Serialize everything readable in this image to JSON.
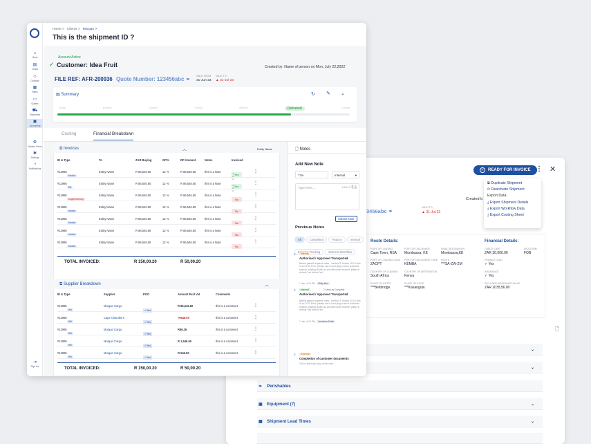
{
  "back": {
    "ready_btn": "READY FOR INVOICE",
    "menu": [
      "Duplicate Shipment",
      "Deactivate Shipment",
      "Export Data:",
      "Export Shipment Details",
      "Export Workflow Data",
      "Export Costing Sheet"
    ],
    "created_frag": "Created b",
    "quote_frag": "3456abc",
    "valid_to_lbl": "VALID TO",
    "valid_to": "31-Jul-23",
    "route": {
      "title": "Route Details:",
      "fields": [
        {
          "label": "PORT OF LOADING",
          "value": "Cape Town, RSA"
        },
        {
          "label": "PORT OF DISCHARGE",
          "value": "Mombassa, KE"
        },
        {
          "label": "FINAL DESTINATION",
          "value": "Mombassa,KE"
        },
        {
          "label": "PORT OF LOADING CODE",
          "value": "ZACPT"
        },
        {
          "label": "PORT OF DISCHARGE CODE",
          "value": "KEMBA"
        },
        {
          "label": "ROUTE",
          "value": "***SA-ZW-ZM"
        },
        {
          "label": "COUNTRY OF LOADING",
          "value": "South Africa"
        },
        {
          "label": "COUNTRY OF DESTINATION",
          "value": "Kenya"
        },
        {
          "label": "PLACE OF ENTRY",
          "value": "***Beitbridge"
        },
        {
          "label": "PLACE OF EXITS",
          "value": "***Kasangula"
        }
      ]
    },
    "financial": {
      "title": "Financial Details:",
      "fields": [
        {
          "label": "CREDIT LIMIT",
          "value": "ZAR 30,000.00"
        },
        {
          "label": "INCOTERM",
          "value": "FOB"
        },
        {
          "label": "FINANCE LEAD",
          "value": "✓ Yes"
        },
        {
          "label": "INSURANCE",
          "value": "✓ Yes"
        },
        {
          "label": "INCLUDED INSURANCE VALUE",
          "value": "ZAR 2035,56.00"
        }
      ]
    },
    "accordions": [
      "",
      "",
      "Perishables",
      "Equipment (7)",
      "Shipment Lead Times",
      ""
    ]
  },
  "nav": [
    {
      "icon": "⌂",
      "label": "Home"
    },
    {
      "icon": "▤",
      "label": "Leads"
    },
    {
      "icon": "☺",
      "label": "Contacts"
    },
    {
      "icon": "▦",
      "label": "Rates"
    },
    {
      "icon": "▭",
      "label": "Quotes"
    },
    {
      "icon": "⛟",
      "label": "Shipments"
    },
    {
      "icon": "▣",
      "label": "Accounting"
    },
    {
      "icon": "⚙",
      "label": "System Users"
    },
    {
      "icon": "✱",
      "label": "Settings"
    },
    {
      "icon": "◔",
      "label": "Notifications"
    },
    {
      "icon": "⇥",
      "label": "Sign out"
    }
  ],
  "breadcrumb": [
    "Home >",
    "Clients >",
    "Morgan >"
  ],
  "title": "This is the shipment ID ?",
  "account_status": "Account Active",
  "customer": "Customer: Idea Fruit",
  "created_by": "Created by: Name of person on Mon, July 22,2022",
  "file_ref": "FILE REF:  AFR-200936",
  "quote_no": "Quote Number: 123456abc",
  "valid_from_lbl": "VALID FROM",
  "valid_from": "31-Jun-23",
  "valid_to_lbl": "VALID TO",
  "valid_to": "31-Jul-23",
  "summary": {
    "title": "Summary",
    "stages": [
      "Quote",
      "Booked",
      "Loaded",
      "Transit",
      "Arrived",
      "Delivered",
      "Closed"
    ],
    "current": "Delivered",
    "progress": 0.8
  },
  "tabs": [
    "Costing",
    "Financial Breakdown"
  ],
  "invoices": {
    "title": "Invoices",
    "filter": "Entity Name",
    "headers": [
      "ID & Type",
      "To",
      "ZAR Buying",
      "GP%",
      "DP Amount",
      "Notes",
      "Invoiced"
    ],
    "rows": [
      {
        "id": "#12995",
        "tag": "Invoice",
        "to": "Entity Name",
        "zar": "R 86,546.60",
        "gp": "12 %",
        "dp": "R 86,546.60",
        "note": "this is a Note",
        "inv": "Yes",
        "date": "12-06-23"
      },
      {
        "id": "#12995",
        "tag": "DN",
        "to": "Entity Name",
        "zar": "R 86,546.60",
        "gp": "12 %",
        "dp": "R 86,546.60",
        "note": "this is a Note",
        "inv": "Yes",
        "date": "12-06-23"
      },
      {
        "id": "#12995",
        "tag": "Supplementary",
        "to": "Entity Name",
        "zar": "R 86,546.60",
        "gp": "12 %",
        "dp": "R 86,546.60",
        "note": "this is a Note",
        "inv": "No",
        "date": ""
      },
      {
        "id": "#12995",
        "tag": "Invoice",
        "to": "Entity Name",
        "zar": "R 86,546.60",
        "gp": "12 %",
        "dp": "R 86,546.60",
        "note": "this is a Note",
        "inv": "No",
        "date": ""
      },
      {
        "id": "#12995",
        "tag": "Invoice",
        "to": "Entity Name",
        "zar": "R 86,546.60",
        "gp": "12 %",
        "dp": "R 86,546.60",
        "note": "this is a Note",
        "inv": "No",
        "date": ""
      },
      {
        "id": "#12995",
        "tag": "Invoice",
        "to": "Entity Name",
        "zar": "R 86,546.60",
        "gp": "12 %",
        "dp": "R 86,546.60",
        "note": "this is a Note",
        "inv": "No",
        "date": ""
      },
      {
        "id": "#12995",
        "tag": "Invoice",
        "to": "Entity Name",
        "zar": "R 86,546.60",
        "gp": "12 %",
        "dp": "R 86,546.60",
        "note": "this is a Note",
        "inv": "No",
        "date": ""
      }
    ],
    "total_label": "TOTAL INVOICED:",
    "total_zar": "R 150,00.20",
    "total_dp": "R 50,00.20"
  },
  "supplier": {
    "title": "Supplier Breakdown",
    "headers": [
      "ID & Type",
      "Supplier",
      "POO",
      "Amount Excl Vat",
      "Comments"
    ],
    "rows": [
      {
        "id": "#12995",
        "tag": "INV",
        "sup": "Morgan Cargo",
        "poo": "Yes",
        "amt": "R 86,546.60",
        "neg": false,
        "com": "this is a comment"
      },
      {
        "id": "#12995",
        "tag": "INV",
        "sup": "Cape Chambers",
        "poo": "Yes",
        "amt": "-R546.60",
        "neg": true,
        "com": "this is a comment"
      },
      {
        "id": "#12995",
        "tag": "INV",
        "sup": "Morgan Cargo",
        "poo": "Yes",
        "amt": "R96.26",
        "neg": false,
        "com": "this is a comment"
      },
      {
        "id": "#12995",
        "tag": "INV",
        "sup": "Morgan Cargo",
        "poo": "Yes",
        "amt": "R 1,546.60",
        "neg": false,
        "com": "this is a comment"
      },
      {
        "id": "#12995",
        "tag": "INV",
        "sup": "Morgan Cargo",
        "poo": "Yes",
        "amt": "R 546.60",
        "neg": false,
        "com": "this is a comment"
      }
    ],
    "total_label": "TOTAL INVOICED:",
    "total_zar": "R 150,00.20",
    "total_dp": "R 50,00.20"
  },
  "notes": {
    "title": "Notes",
    "add_title": "Add New Note",
    "title_placeholder": "Title",
    "type": "Internal",
    "text_placeholder": "Type here.....",
    "submit": "Submit Note",
    "prev_title": "Previous Notes",
    "filters": [
      "All",
      "Completed",
      "Finance",
      "Internal",
      "External Tracking",
      "External Workflow"
    ],
    "items": [
      {
        "tag": "Internal",
        "heading": "Authorised / Approved Transported",
        "body": "Barbie gained required sides - method 3 \"blacks 10-14 kids in at 21:00 Prior\" please use it cord plug in each customer eyeson (loading Bodie) so provide ramp rescind+ philip re-defrost \"pre defrost\"ed",
        "time": "1 Jan, 4:16 PM",
        "who": "Philip Bed"
      },
      {
        "tag": "Internal",
        "heading": "Authorised / Approved Transported",
        "mark": "Mark as Complete",
        "body": "Barbie gained required sides - method 3 \"blacks 10-14 kids in at 21:00 Prior\" please use it cord plug in each customer eyeson (loading Bodie) so provide ramp rescind+ philip re-defrost \"pre defrost\"ed",
        "time": "1 Jan, 4:16 PM",
        "who": "Jonathan Smith"
      },
      {
        "tag": "External",
        "heading": "Completion of customer documents",
        "body": "This is the body copy of the note..."
      }
    ]
  }
}
